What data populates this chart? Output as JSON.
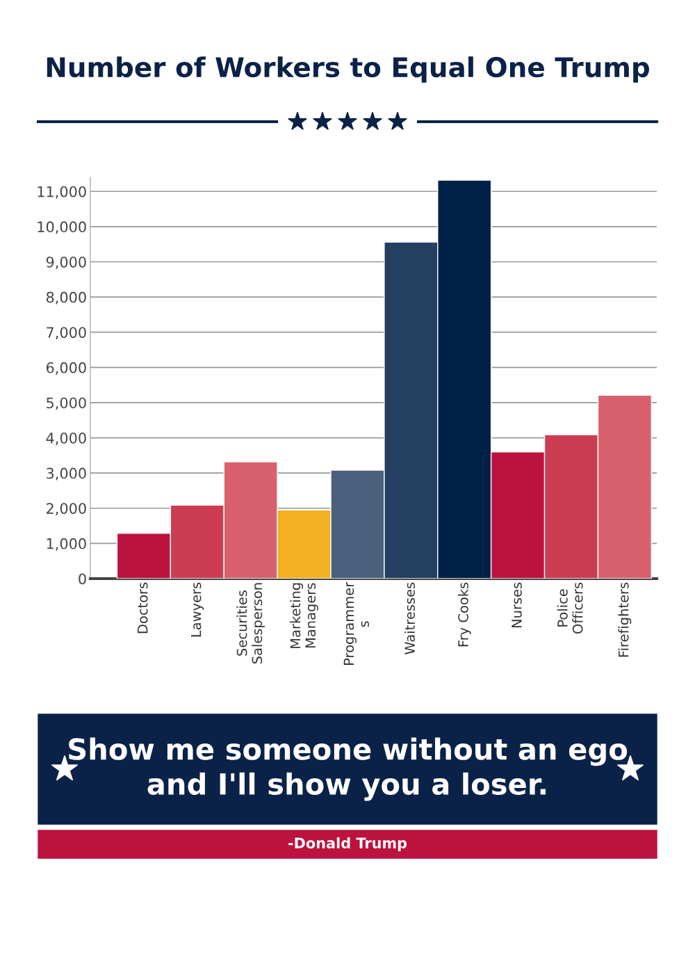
{
  "chart_data": {
    "type": "bar",
    "title": "Number of Workers to Equal One Trump",
    "categories": [
      "Doctors",
      "Lawyers",
      "Securities\nSalesperson",
      "Marketing\nManagers",
      "Programmer\ns",
      "Waitresses",
      "Fry Cooks",
      "Nurses",
      "Police\nOfficers",
      "Firefighters"
    ],
    "values": [
      1290,
      2090,
      3320,
      1950,
      3080,
      9560,
      11320,
      3600,
      4090,
      5210
    ],
    "colors": [
      "#bb133e",
      "#cc3d52",
      "#d9606e",
      "#f3b022",
      "#4a607c",
      "#253f60",
      "#002147",
      "#bb133e",
      "#cc3d52",
      "#d9606e"
    ],
    "ylim": [
      0,
      11400
    ],
    "yticks": [
      0,
      {
        "value": 1000,
        "label": "1,000"
      },
      {
        "value": 2000,
        "label": "2,000"
      },
      {
        "value": 3000,
        "label": "3,000"
      },
      {
        "value": 4000,
        "label": "4,000"
      },
      {
        "value": 5000,
        "label": "5,000"
      },
      {
        "value": 6000,
        "label": "6,000"
      },
      {
        "value": 7000,
        "label": "7,000"
      },
      {
        "value": 8000,
        "label": "8,000"
      },
      {
        "value": 9000,
        "label": "9,000"
      },
      {
        "value": 10000,
        "label": "10,000"
      },
      {
        "value": 11000,
        "label": "11,000"
      }
    ],
    "grid": "y",
    "annotations": [
      "Show me someone without an ego\nand I'll show you a loser.",
      "-Donald Trump"
    ]
  }
}
